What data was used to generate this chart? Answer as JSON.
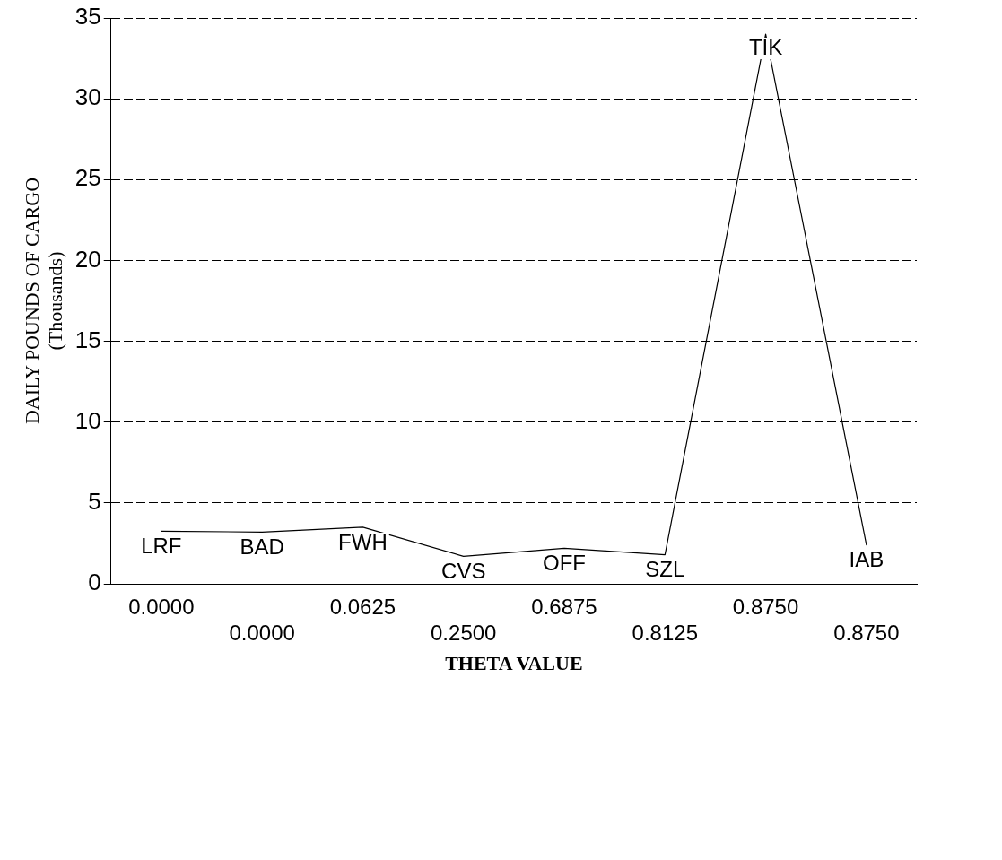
{
  "chart_data": {
    "type": "line",
    "xlabel": "THETA VALUE",
    "ylabel": "DAILY POUNDS OF CARGO\n(Thousands)",
    "categories": [
      "0.0000",
      "0.0000",
      "0.0625",
      "0.2500",
      "0.6875",
      "0.8125",
      "0.8750",
      "0.8750"
    ],
    "series": [
      {
        "color": "#000000",
        "values": [
          3.25,
          3.2,
          3.5,
          1.7,
          2.2,
          1.8,
          34,
          2.4
        ]
      }
    ],
    "ylim": [
      0,
      35
    ],
    "yticks": [
      0,
      5,
      10,
      15,
      20,
      25,
      30,
      35
    ],
    "grid": "y",
    "legend": false,
    "marker": "none",
    "line_style": "solid",
    "annotations": [
      "LRF",
      "BAD",
      "FWH",
      "CVS",
      "OFF",
      "SZL",
      "TIK",
      "IAB"
    ]
  }
}
